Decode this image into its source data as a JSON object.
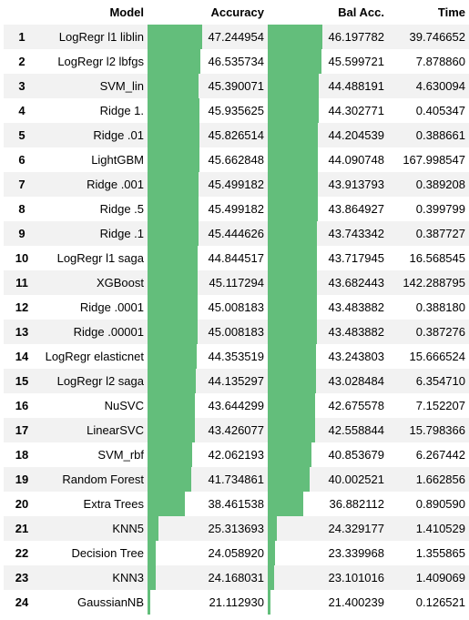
{
  "headers": {
    "index": "",
    "model": "Model",
    "accuracy": "Accuracy",
    "bal_acc": "Bal Acc.",
    "time": "Time"
  },
  "bar_color": "#63be7b",
  "bar_scale": {
    "accuracy_min": 20.0,
    "accuracy_max": 47.244954,
    "bal_acc_min": 20.0,
    "bal_acc_max": 46.197782
  },
  "rows": [
    {
      "idx": "1",
      "model": "LogRegr l1 liblin",
      "accuracy": "47.244954",
      "bal_acc": "46.197782",
      "time": "39.746652"
    },
    {
      "idx": "2",
      "model": "LogRegr l2 lbfgs",
      "accuracy": "46.535734",
      "bal_acc": "45.599721",
      "time": "7.878860"
    },
    {
      "idx": "3",
      "model": "SVM_lin",
      "accuracy": "45.390071",
      "bal_acc": "44.488191",
      "time": "4.630094"
    },
    {
      "idx": "4",
      "model": "Ridge 1.",
      "accuracy": "45.935625",
      "bal_acc": "44.302771",
      "time": "0.405347"
    },
    {
      "idx": "5",
      "model": "Ridge .01",
      "accuracy": "45.826514",
      "bal_acc": "44.204539",
      "time": "0.388661"
    },
    {
      "idx": "6",
      "model": "LightGBM",
      "accuracy": "45.662848",
      "bal_acc": "44.090748",
      "time": "167.998547"
    },
    {
      "idx": "7",
      "model": "Ridge .001",
      "accuracy": "45.499182",
      "bal_acc": "43.913793",
      "time": "0.389208"
    },
    {
      "idx": "8",
      "model": "Ridge .5",
      "accuracy": "45.499182",
      "bal_acc": "43.864927",
      "time": "0.399799"
    },
    {
      "idx": "9",
      "model": "Ridge .1",
      "accuracy": "45.444626",
      "bal_acc": "43.743342",
      "time": "0.387727"
    },
    {
      "idx": "10",
      "model": "LogRegr l1 saga",
      "accuracy": "44.844517",
      "bal_acc": "43.717945",
      "time": "16.568545"
    },
    {
      "idx": "11",
      "model": "XGBoost",
      "accuracy": "45.117294",
      "bal_acc": "43.682443",
      "time": "142.288795"
    },
    {
      "idx": "12",
      "model": "Ridge .0001",
      "accuracy": "45.008183",
      "bal_acc": "43.483882",
      "time": "0.388180"
    },
    {
      "idx": "13",
      "model": "Ridge .00001",
      "accuracy": "45.008183",
      "bal_acc": "43.483882",
      "time": "0.387276"
    },
    {
      "idx": "14",
      "model": "LogRegr elasticnet",
      "accuracy": "44.353519",
      "bal_acc": "43.243803",
      "time": "15.666524"
    },
    {
      "idx": "15",
      "model": "LogRegr l2 saga",
      "accuracy": "44.135297",
      "bal_acc": "43.028484",
      "time": "6.354710"
    },
    {
      "idx": "16",
      "model": "NuSVC",
      "accuracy": "43.644299",
      "bal_acc": "42.675578",
      "time": "7.152207"
    },
    {
      "idx": "17",
      "model": "LinearSVC",
      "accuracy": "43.426077",
      "bal_acc": "42.558844",
      "time": "15.798366"
    },
    {
      "idx": "18",
      "model": "SVM_rbf",
      "accuracy": "42.062193",
      "bal_acc": "40.853679",
      "time": "6.267442"
    },
    {
      "idx": "19",
      "model": "Random Forest",
      "accuracy": "41.734861",
      "bal_acc": "40.002521",
      "time": "1.662856"
    },
    {
      "idx": "20",
      "model": "Extra Trees",
      "accuracy": "38.461538",
      "bal_acc": "36.882112",
      "time": "0.890590"
    },
    {
      "idx": "21",
      "model": "KNN5",
      "accuracy": "25.313693",
      "bal_acc": "24.329177",
      "time": "1.410529"
    },
    {
      "idx": "22",
      "model": "Decision Tree",
      "accuracy": "24.058920",
      "bal_acc": "23.339968",
      "time": "1.355865"
    },
    {
      "idx": "23",
      "model": "KNN3",
      "accuracy": "24.168031",
      "bal_acc": "23.101016",
      "time": "1.409069"
    },
    {
      "idx": "24",
      "model": "GaussianNB",
      "accuracy": "21.112930",
      "bal_acc": "21.400239",
      "time": "0.126521"
    }
  ]
}
